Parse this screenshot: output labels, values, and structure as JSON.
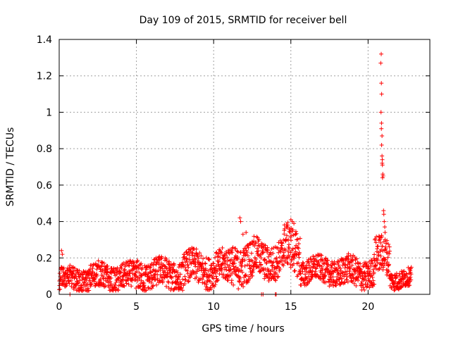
{
  "chart_data": {
    "type": "scatter",
    "title": "Day 109 of 2015, SRMTID for receiver bell",
    "xlabel": "GPS time / hours",
    "ylabel": "SRMTID / TECUs",
    "xlim": [
      0,
      24
    ],
    "ylim": [
      0,
      1.4
    ],
    "xticks": [
      0,
      5,
      10,
      15,
      20
    ],
    "yticks": [
      0,
      0.2,
      0.4,
      0.6,
      0.8,
      1,
      1.2,
      1.4
    ],
    "ytick_labels": [
      "0",
      "0.2",
      "0.4",
      "0.6",
      "0.8",
      "1",
      "1.2",
      "1.4"
    ],
    "grid": true,
    "marker": "plus",
    "series_color": "#ff0000",
    "segments": [
      {
        "x_start": 0.0,
        "x_end": 2.0,
        "base": 0.085,
        "spread": 0.06
      },
      {
        "x_start": 2.0,
        "x_end": 5.0,
        "base": 0.095,
        "spread": 0.07
      },
      {
        "x_start": 5.0,
        "x_end": 8.0,
        "base": 0.11,
        "spread": 0.08
      },
      {
        "x_start": 8.0,
        "x_end": 11.0,
        "base": 0.14,
        "spread": 0.09
      },
      {
        "x_start": 11.0,
        "x_end": 12.5,
        "base": 0.17,
        "spread": 0.11
      },
      {
        "x_start": 12.5,
        "x_end": 14.5,
        "base": 0.19,
        "spread": 0.1
      },
      {
        "x_start": 14.5,
        "x_end": 15.6,
        "base": 0.24,
        "spread": 0.12
      },
      {
        "x_start": 15.6,
        "x_end": 18.0,
        "base": 0.13,
        "spread": 0.07
      },
      {
        "x_start": 18.0,
        "x_end": 20.4,
        "base": 0.12,
        "spread": 0.08
      },
      {
        "x_start": 20.4,
        "x_end": 21.4,
        "base": 0.2,
        "spread": 0.1
      },
      {
        "x_start": 21.4,
        "x_end": 22.8,
        "base": 0.085,
        "spread": 0.05
      }
    ],
    "point_spacing_hours": 0.0125,
    "peaks": [
      {
        "x": 0.15,
        "y": 0.24
      },
      {
        "x": 0.2,
        "y": 0.22
      },
      {
        "x": 11.7,
        "y": 0.42
      },
      {
        "x": 11.75,
        "y": 0.4
      },
      {
        "x": 11.9,
        "y": 0.33
      },
      {
        "x": 12.1,
        "y": 0.34
      },
      {
        "x": 12.4,
        "y": 0.28
      },
      {
        "x": 15.0,
        "y": 0.41
      },
      {
        "x": 15.1,
        "y": 0.4
      },
      {
        "x": 15.2,
        "y": 0.39
      },
      {
        "x": 14.6,
        "y": 0.36
      },
      {
        "x": 14.8,
        "y": 0.38
      },
      {
        "x": 20.85,
        "y": 1.32
      },
      {
        "x": 20.82,
        "y": 1.27
      },
      {
        "x": 20.86,
        "y": 1.16
      },
      {
        "x": 20.88,
        "y": 1.1
      },
      {
        "x": 20.84,
        "y": 1.0
      },
      {
        "x": 20.87,
        "y": 0.94
      },
      {
        "x": 20.86,
        "y": 0.91
      },
      {
        "x": 20.9,
        "y": 0.87
      },
      {
        "x": 20.88,
        "y": 0.82
      },
      {
        "x": 20.9,
        "y": 0.76
      },
      {
        "x": 20.92,
        "y": 0.74
      },
      {
        "x": 20.91,
        "y": 0.72
      },
      {
        "x": 20.93,
        "y": 0.71
      },
      {
        "x": 20.95,
        "y": 0.66
      },
      {
        "x": 20.97,
        "y": 0.65
      },
      {
        "x": 20.94,
        "y": 0.64
      },
      {
        "x": 21.0,
        "y": 0.46
      },
      {
        "x": 21.02,
        "y": 0.44
      },
      {
        "x": 21.05,
        "y": 0.4
      },
      {
        "x": 21.08,
        "y": 0.37
      },
      {
        "x": 21.1,
        "y": 0.34
      }
    ],
    "baseline_points": [
      {
        "x": 0.7,
        "y": 0.0
      },
      {
        "x": 13.1,
        "y": 0.0
      },
      {
        "x": 13.2,
        "y": 0.0
      },
      {
        "x": 14.0,
        "y": 0.0
      },
      {
        "x": 14.05,
        "y": 0.0
      }
    ]
  }
}
